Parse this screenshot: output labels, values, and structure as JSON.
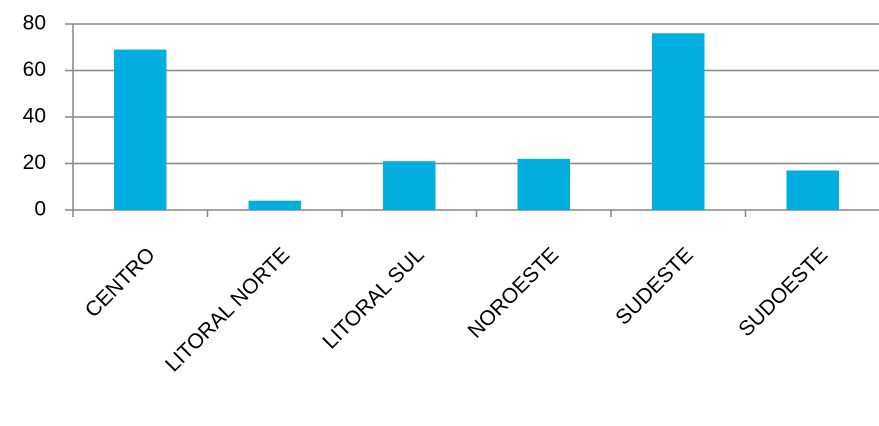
{
  "chart_data": {
    "type": "bar",
    "categories": [
      "CENTRO",
      "LITORAL NORTE",
      "LITORAL SUL",
      "NOROESTE",
      "SUDESTE",
      "SUDOESTE"
    ],
    "values": [
      69,
      4,
      21,
      22,
      76,
      17
    ],
    "color": "#00aedf",
    "ylim": [
      0,
      80
    ],
    "yticks": [
      0,
      20,
      40,
      60,
      80
    ],
    "grid": true
  }
}
